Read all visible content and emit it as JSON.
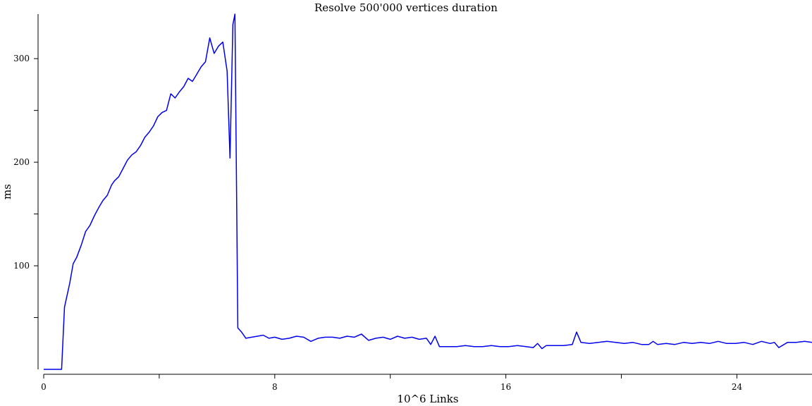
{
  "chart_data": {
    "type": "line",
    "title": "Resolve 500'000 vertices duration",
    "xlabel": "10^6 Links",
    "ylabel": "ms",
    "xlim": [
      0,
      26.6
    ],
    "ylim": [
      0,
      343
    ],
    "xticks": [
      {
        "value": 0,
        "label": "0"
      },
      {
        "value": 4,
        "label": ""
      },
      {
        "value": 8,
        "label": "8"
      },
      {
        "value": 12,
        "label": ""
      },
      {
        "value": 16,
        "label": "16"
      },
      {
        "value": 20,
        "label": ""
      },
      {
        "value": 24,
        "label": "24"
      }
    ],
    "yticks": [
      {
        "value": 50,
        "label": ""
      },
      {
        "value": 100,
        "label": "100"
      },
      {
        "value": 150,
        "label": ""
      },
      {
        "value": 200,
        "label": "200"
      },
      {
        "value": 250,
        "label": ""
      },
      {
        "value": 300,
        "label": "300"
      }
    ],
    "grid": false,
    "legend": "none",
    "series": [
      {
        "color": "#0000ee",
        "x": [
          0,
          0.6,
          0.62,
          0.72,
          0.9,
          1.02,
          1.14,
          1.3,
          1.45,
          1.6,
          1.75,
          1.9,
          2.05,
          2.2,
          2.35,
          2.45,
          2.6,
          2.75,
          2.9,
          3.05,
          3.2,
          3.35,
          3.5,
          3.65,
          3.8,
          3.95,
          4.1,
          4.25,
          4.4,
          4.55,
          4.7,
          4.85,
          5.0,
          5.15,
          5.3,
          5.45,
          5.6,
          5.75,
          5.9,
          6.05,
          6.2,
          6.35,
          6.45,
          6.55,
          6.62,
          6.72,
          6.85,
          7.0,
          7.2,
          7.4,
          7.6,
          7.8,
          8.0,
          8.25,
          8.5,
          8.75,
          9.0,
          9.25,
          9.5,
          9.75,
          10.0,
          10.25,
          10.5,
          10.75,
          11.0,
          11.25,
          11.5,
          11.75,
          12.0,
          12.25,
          12.5,
          12.75,
          13.0,
          13.25,
          13.4,
          13.55,
          13.7,
          14.0,
          14.3,
          14.6,
          14.9,
          15.2,
          15.5,
          15.8,
          16.1,
          16.4,
          16.7,
          16.95,
          17.1,
          17.25,
          17.4,
          17.7,
          18.0,
          18.3,
          18.45,
          18.6,
          18.9,
          19.2,
          19.5,
          19.8,
          20.1,
          20.4,
          20.7,
          20.95,
          21.1,
          21.25,
          21.55,
          21.85,
          22.15,
          22.45,
          22.75,
          23.05,
          23.35,
          23.65,
          23.95,
          24.25,
          24.55,
          24.85,
          25.15,
          25.3,
          25.45,
          25.75,
          26.05,
          26.35,
          26.6
        ],
        "y": [
          0,
          0,
          0,
          60,
          83,
          102,
          108,
          120,
          133,
          139,
          148,
          156,
          163,
          168,
          178,
          182,
          186,
          194,
          202,
          207,
          210,
          216,
          224,
          229,
          235,
          244,
          248,
          250,
          266,
          262,
          268,
          273,
          281,
          278,
          285,
          292,
          297,
          320,
          305,
          312,
          316,
          288,
          204,
          333,
          343,
          40,
          36,
          30,
          31,
          32,
          33,
          30,
          31,
          29,
          30,
          32,
          31,
          27,
          30,
          31,
          31,
          30,
          32,
          31,
          34,
          28,
          30,
          31,
          29,
          32,
          30,
          31,
          29,
          30,
          24,
          32,
          22,
          22,
          22,
          23,
          22,
          22,
          23,
          22,
          22,
          23,
          22,
          21,
          25,
          20,
          23,
          23,
          23,
          24,
          36,
          26,
          25,
          26,
          27,
          26,
          25,
          26,
          24,
          24,
          27,
          24,
          25,
          24,
          26,
          25,
          26,
          25,
          27,
          25,
          25,
          26,
          24,
          27,
          25,
          26,
          21,
          26,
          26,
          27,
          26
        ]
      }
    ]
  }
}
